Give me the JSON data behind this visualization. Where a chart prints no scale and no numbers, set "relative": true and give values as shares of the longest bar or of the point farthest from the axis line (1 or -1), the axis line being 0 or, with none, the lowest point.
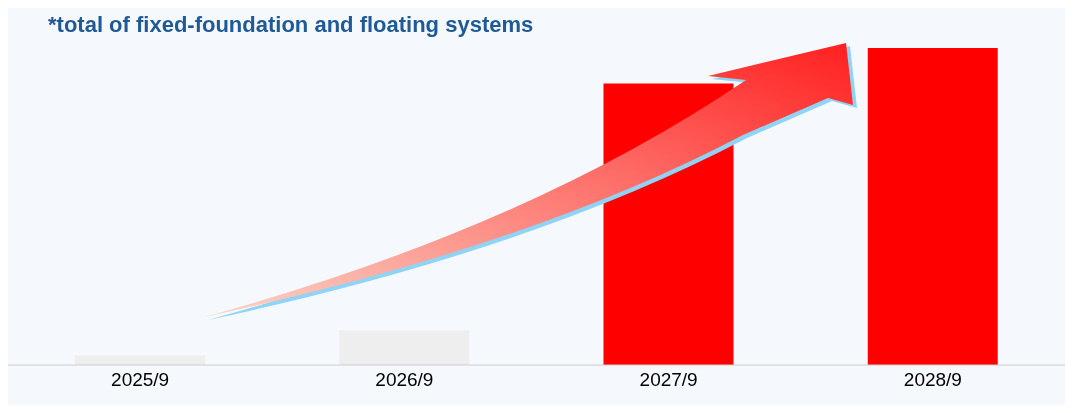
{
  "chart_data": {
    "type": "bar",
    "relative": true,
    "annotations": [
      "*total of fixed-foundation and floating systems"
    ],
    "categories": [
      "2025/9",
      "2026/9",
      "2027/9",
      "2028/9"
    ],
    "values": [
      0.03,
      0.11,
      0.888,
      1
    ],
    "colors": [
      "#eeeeee",
      "#eeeeee",
      "#ff0000",
      "#ff0000"
    ],
    "grid": false,
    "legend": false
  }
}
